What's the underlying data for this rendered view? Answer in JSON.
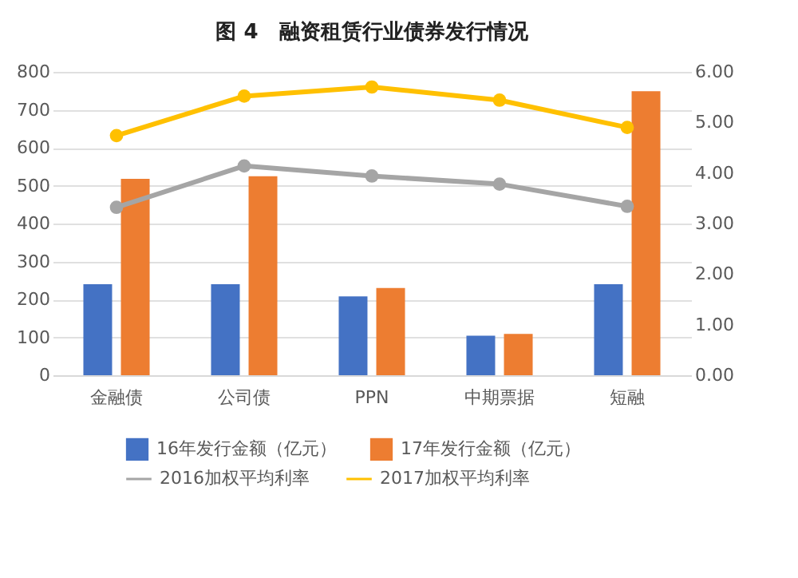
{
  "chart_data": {
    "type": "bar",
    "title": "图 4　融资租赁行业债券发行情况",
    "categories": [
      "金融债",
      "公司债",
      "PPN",
      "中期票据",
      "短融"
    ],
    "series": [
      {
        "name": "16年发行金额（亿元）",
        "color": "#4472c4",
        "values": [
          240,
          240,
          208,
          104,
          240
        ]
      },
      {
        "name": "17年发行金额（亿元）",
        "color": "#ed7d31",
        "values": [
          518,
          525,
          230,
          109,
          749
        ]
      },
      {
        "name": "2016加权平均利率",
        "type": "line",
        "axis": "y2",
        "color": "#a5a5a5",
        "values": [
          3.32,
          4.14,
          3.94,
          3.78,
          3.34
        ]
      },
      {
        "name": "2017加权平均利率",
        "type": "line",
        "axis": "y2",
        "color": "#ffc000",
        "values": [
          4.74,
          5.52,
          5.7,
          5.44,
          4.9
        ]
      }
    ],
    "ylim": [
      0,
      800
    ],
    "yticks": [
      0,
      100,
      200,
      300,
      400,
      500,
      600,
      700,
      800
    ],
    "y2lim": [
      0,
      6
    ],
    "y2ticks": [
      {
        "value": 0,
        "label": "0.00"
      },
      {
        "value": 1,
        "label": "1.00"
      },
      {
        "value": 2,
        "label": "2.00"
      },
      {
        "value": 3,
        "label": "3.00"
      },
      {
        "value": 4,
        "label": "4.00"
      },
      {
        "value": 5,
        "label": "5.00"
      },
      {
        "value": 6,
        "label": "6.00"
      }
    ],
    "grid": "y",
    "legend": "bottom",
    "marker": "circle"
  }
}
